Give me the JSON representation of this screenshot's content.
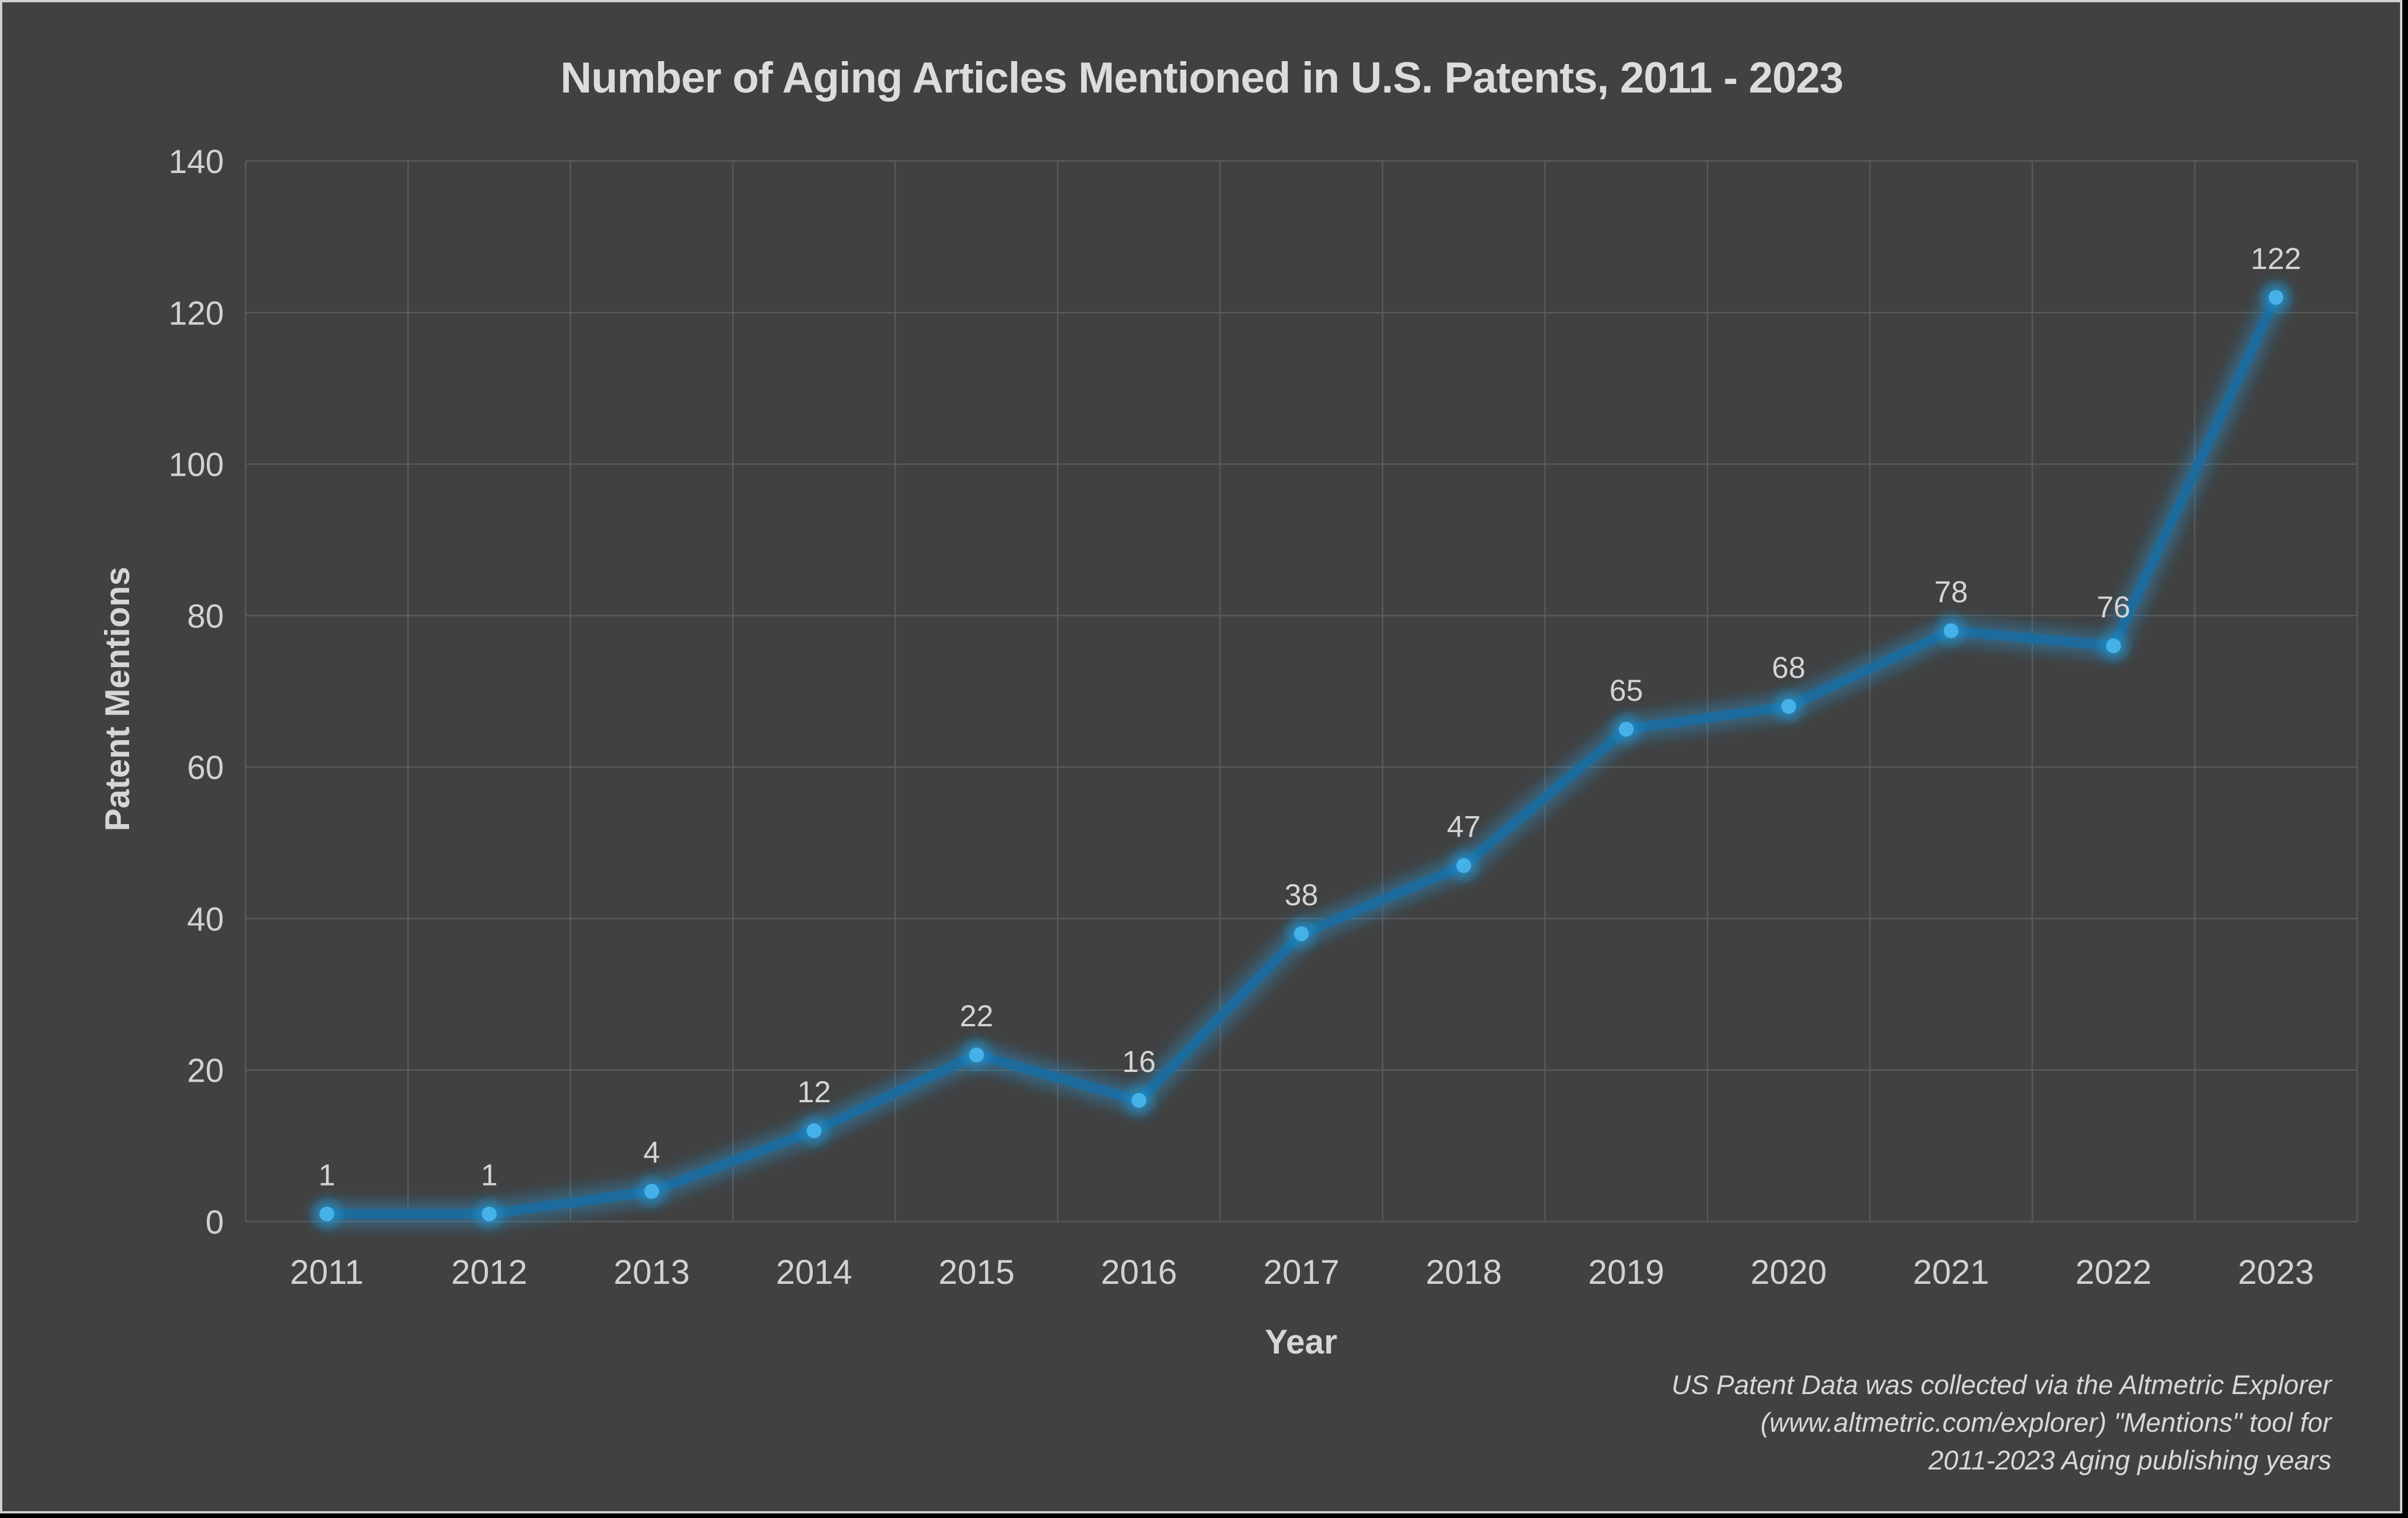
{
  "page": {
    "background_color": "#000000",
    "card_background_color": "#414141",
    "card_border_color": "#d2d2d2"
  },
  "chart_data": {
    "type": "line",
    "title": "Number of Aging Articles Mentioned in U.S. Patents, 2011 - 2023",
    "xlabel": "Year",
    "ylabel": "Patent Mentions",
    "categories": [
      "2011",
      "2012",
      "2013",
      "2014",
      "2015",
      "2016",
      "2017",
      "2018",
      "2019",
      "2020",
      "2021",
      "2022",
      "2023"
    ],
    "values": [
      1,
      1,
      4,
      12,
      22,
      16,
      38,
      47,
      65,
      68,
      78,
      76,
      122
    ],
    "data_labels": [
      1,
      1,
      4,
      12,
      22,
      16,
      38,
      47,
      65,
      68,
      78,
      76,
      122
    ],
    "ylim": [
      0,
      140
    ],
    "ytick_interval": 20,
    "yticks": [
      0,
      20,
      40,
      60,
      80,
      100,
      120,
      140
    ],
    "grid": "both",
    "legend": "none",
    "colors": {
      "line": "#1d6b9c",
      "marker": "#45b1e8",
      "glow": "#2196d6",
      "gridline": "#5a5a5a",
      "text": "#d2d2d2"
    }
  },
  "footnote": {
    "lines": [
      "US Patent Data was collected via the Altmetric Explorer",
      "(www.altmetric.com/explorer) \"Mentions\" tool for",
      "2011-2023 Aging publishing years"
    ]
  }
}
